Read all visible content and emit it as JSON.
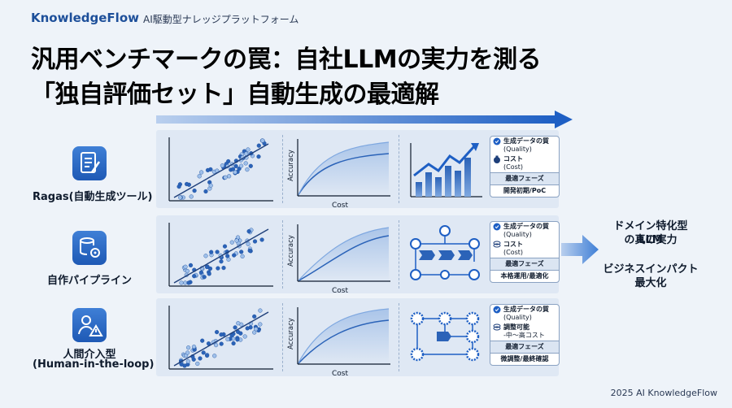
{
  "header": {
    "brand": "KnowledgeFlow",
    "tagline": "AI駆動型ナレッジプラットフォーム"
  },
  "title": {
    "line1": "汎用ベンチマークの罠：自社LLMの実力を測る",
    "line2": "「独自評価セット」自動生成の最適解"
  },
  "rows": [
    {
      "label": "Ragas(自動生成ツール)",
      "icon": "document-pen-icon",
      "chart_xlabel": "Cost",
      "chart_ylabel": "Accuracy",
      "card": {
        "quality_label": "生成データの質",
        "quality_value": "(Quality)",
        "cost_label": "コスト",
        "cost_value": "(Cost)",
        "phase_header": "最適フェーズ",
        "phase_value": "開発初期/PoC"
      }
    },
    {
      "label": "自作パイプライン",
      "icon": "database-gear-icon",
      "chart_xlabel": "Cost",
      "chart_ylabel": "Accuracy",
      "card": {
        "quality_label": "生成データの質",
        "quality_value": "(Quality)",
        "cost_label": "コスト",
        "cost_value": "(Cost)",
        "phase_header": "最適フェーズ",
        "phase_value": "本格運用/最適化"
      }
    },
    {
      "label": "人間介入型",
      "label2": "(Human-in-the-loop)",
      "icon": "person-alert-icon",
      "chart_xlabel": "Cost",
      "chart_ylabel": "Accuracy",
      "card": {
        "quality_label": "生成データの質",
        "quality_value": "(Quality)",
        "cost_label": "調整可能",
        "cost_value": "-中〜高コスト",
        "phase_header": "最適フェーズ",
        "phase_value": "微調整/最終確認"
      }
    }
  ],
  "result": {
    "line1": "ドメイン特化型LLM",
    "line2": "の真の実力",
    "line3": "ビジネスインパクト",
    "line4": "最大化"
  },
  "footer": "2025 AI KnowledgeFlow",
  "colors": {
    "accent": "#1e5fc4",
    "band": "#dfe8f4",
    "brand": "#1d4f9a"
  }
}
